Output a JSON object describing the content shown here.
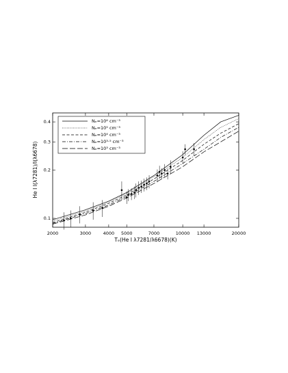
{
  "chart_data": {
    "type": "line",
    "xlabel": "Tₑ(He I λ7281/λ6678)(K)",
    "ylabel": "He I I(λ7281)/I(λ6678)",
    "xscale": "log",
    "yscale": "log",
    "xlim": [
      2000,
      20000
    ],
    "ylim": [
      0.088,
      0.455
    ],
    "xticks": [
      2000,
      3000,
      4000,
      5000,
      7000,
      10000,
      13000,
      20000
    ],
    "yticks": [
      0.1,
      0.2,
      0.3,
      0.4
    ],
    "legend": "upper-left",
    "x": [
      2000,
      3000,
      4000,
      5000,
      7000,
      10000,
      13000,
      16000,
      20000
    ],
    "series": [
      {
        "name": "Nₑ=10⁶ cm⁻³",
        "color": "#000000",
        "linestyle": "solid",
        "values": [
          0.098,
          0.113,
          0.128,
          0.145,
          0.185,
          0.25,
          0.33,
          0.4,
          0.44
        ]
      },
      {
        "name": "Nₑ=10⁵ cm⁻³",
        "color": "#000000",
        "linestyle": "dotted",
        "values": [
          0.096,
          0.111,
          0.126,
          0.143,
          0.182,
          0.24,
          0.31,
          0.37,
          0.42
        ]
      },
      {
        "name": "Nₑ=10⁴ cm⁻³",
        "color": "#000000",
        "linestyle": "dashed",
        "values": [
          0.094,
          0.109,
          0.124,
          0.14,
          0.176,
          0.23,
          0.29,
          0.34,
          0.39
        ]
      },
      {
        "name": "Nₑ=10³·⁵ cm⁻³",
        "color": "#000000",
        "linestyle": "dashdot",
        "values": [
          0.093,
          0.107,
          0.121,
          0.137,
          0.17,
          0.22,
          0.27,
          0.32,
          0.37
        ]
      },
      {
        "name": "Nₑ=10³ cm⁻³",
        "color": "#000000",
        "linestyle": "longdash",
        "values": [
          0.092,
          0.105,
          0.119,
          0.134,
          0.165,
          0.21,
          0.26,
          0.3,
          0.35
        ]
      }
    ],
    "points": {
      "color": "#000000",
      "x": [
        2300,
        2500,
        2800,
        3300,
        3700,
        4700,
        5000,
        5100,
        5300,
        5500,
        5600,
        5800,
        6000,
        6200,
        6400,
        6600,
        7300,
        7500,
        7700,
        8000,
        8300,
        8600,
        10000,
        10300,
        11500
      ],
      "y": [
        0.097,
        0.1,
        0.106,
        0.112,
        0.116,
        0.15,
        0.135,
        0.14,
        0.142,
        0.145,
        0.15,
        0.155,
        0.158,
        0.162,
        0.165,
        0.17,
        0.185,
        0.195,
        0.19,
        0.2,
        0.19,
        0.21,
        0.24,
        0.27,
        0.27
      ],
      "yerr": [
        0.012,
        0.012,
        0.013,
        0.014,
        0.014,
        0.02,
        0.012,
        0.012,
        0.012,
        0.013,
        0.015,
        0.015,
        0.014,
        0.015,
        0.015,
        0.016,
        0.017,
        0.018,
        0.015,
        0.018,
        0.015,
        0.02,
        0.022,
        0.02,
        0.025
      ]
    }
  }
}
